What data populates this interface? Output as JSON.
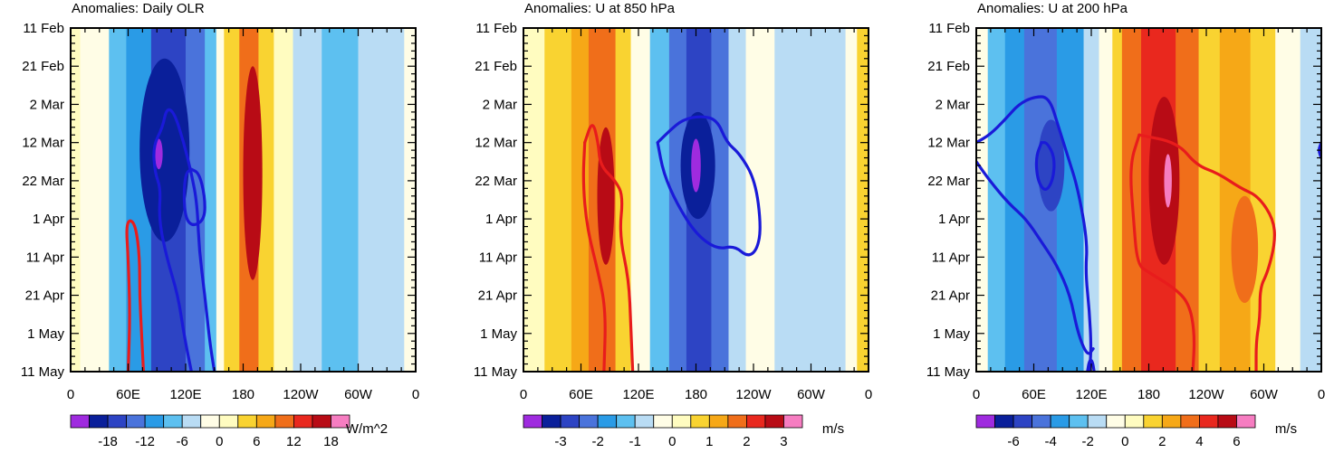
{
  "chart_data": [
    {
      "type": "heatmap",
      "title": "Anomalies: Daily OLR",
      "units": "W/m^2",
      "x_ticks": [
        "0",
        "60E",
        "120E",
        "180",
        "120W",
        "60W",
        "0"
      ],
      "x_values": [
        0,
        60,
        120,
        180,
        240,
        300,
        360
      ],
      "y_ticks": [
        "11 Feb",
        "21 Feb",
        "2 Mar",
        "12 Mar",
        "22 Mar",
        "1 Apr",
        "11 Apr",
        "21 Apr",
        "1 May",
        "11 May"
      ],
      "y_values": [
        0,
        10,
        20,
        30,
        40,
        50,
        60,
        70,
        80,
        90
      ],
      "colorbar_ticks": [
        "-18",
        "-12",
        "-6",
        "0",
        "6",
        "12",
        "18"
      ],
      "levels": [
        -21,
        -18,
        -15,
        -12,
        -9,
        -6,
        -3,
        0,
        3,
        6,
        9,
        12,
        15,
        18,
        21
      ],
      "bands": [
        {
          "from": 0,
          "to": 10,
          "value": 3
        },
        {
          "from": 10,
          "to": 22,
          "value": 1
        },
        {
          "from": 22,
          "to": 40,
          "value": 2
        },
        {
          "from": 40,
          "to": 58,
          "value": -4
        },
        {
          "from": 58,
          "to": 84,
          "value": -9
        },
        {
          "from": 84,
          "to": 120,
          "value": -14
        },
        {
          "from": 120,
          "to": 140,
          "value": -10
        },
        {
          "from": 140,
          "to": 152,
          "value": -4
        },
        {
          "from": 152,
          "to": 160,
          "value": 1
        },
        {
          "from": 160,
          "to": 176,
          "value": 7
        },
        {
          "from": 176,
          "to": 196,
          "value": 14
        },
        {
          "from": 196,
          "to": 212,
          "value": 8
        },
        {
          "from": 212,
          "to": 232,
          "value": 3
        },
        {
          "from": 232,
          "to": 262,
          "value": -1
        },
        {
          "from": 262,
          "to": 300,
          "value": -4
        },
        {
          "from": 300,
          "to": 332,
          "value": -3
        },
        {
          "from": 332,
          "to": 348,
          "value": -1
        },
        {
          "from": 348,
          "to": 360,
          "value": 2
        }
      ],
      "blobs": [
        {
          "x": 98,
          "y": 32,
          "rx": 26,
          "ry": 24,
          "value": -17
        },
        {
          "x": 92,
          "y": 33,
          "rx": 4,
          "ry": 4,
          "value": -20
        },
        {
          "x": 190,
          "y": 38,
          "rx": 10,
          "ry": 28,
          "value": 19
        }
      ],
      "contours": [
        {
          "color": "blue",
          "points": [
            [
              150,
              90
            ],
            [
              145,
              82
            ],
            [
              140,
              70
            ],
            [
              134,
              58
            ],
            [
              132,
              46
            ],
            [
              126,
              38
            ],
            [
              118,
              30
            ],
            [
              108,
              22
            ],
            [
              100,
              21
            ],
            [
              96,
              26
            ],
            [
              86,
              31
            ],
            [
              88,
              38
            ],
            [
              94,
              42
            ],
            [
              92,
              50
            ],
            [
              100,
              60
            ],
            [
              112,
              70
            ],
            [
              118,
              80
            ],
            [
              126,
              90
            ]
          ]
        },
        {
          "color": "blue",
          "points": [
            [
              126,
              37
            ],
            [
              134,
              38
            ],
            [
              140,
              44
            ],
            [
              140,
              50
            ],
            [
              128,
              52
            ],
            [
              120,
              50
            ],
            [
              118,
              44
            ],
            [
              120,
              38
            ],
            [
              126,
              37
            ]
          ]
        },
        {
          "color": "red",
          "points": [
            [
              60,
              90
            ],
            [
              62,
              75
            ],
            [
              60,
              60
            ],
            [
              58,
              52
            ],
            [
              62,
              50
            ],
            [
              68,
              52
            ],
            [
              72,
              60
            ],
            [
              72,
              70
            ],
            [
              74,
              80
            ],
            [
              76,
              90
            ]
          ]
        }
      ]
    },
    {
      "type": "heatmap",
      "title": "Anomalies: U at 850 hPa",
      "units": "m/s",
      "x_ticks": [
        "0",
        "60E",
        "120E",
        "180",
        "120W",
        "60W",
        "0"
      ],
      "x_values": [
        0,
        60,
        120,
        180,
        240,
        300,
        360
      ],
      "y_ticks": [
        "11 Feb",
        "21 Feb",
        "2 Mar",
        "12 Mar",
        "22 Mar",
        "1 Apr",
        "11 Apr",
        "21 Apr",
        "1 May",
        "11 May"
      ],
      "y_values": [
        0,
        10,
        20,
        30,
        40,
        50,
        60,
        70,
        80,
        90
      ],
      "colorbar_ticks": [
        "-3",
        "-2",
        "-1",
        "0",
        "1",
        "2",
        "3"
      ],
      "levels": [
        -3.5,
        -3,
        -2.5,
        -2,
        -1.5,
        -1,
        -0.5,
        0,
        0.5,
        1,
        1.5,
        2,
        2.5,
        3,
        3.5
      ],
      "bands": [
        {
          "from": 0,
          "to": 22,
          "value": 0.9
        },
        {
          "from": 22,
          "to": 50,
          "value": 1.3
        },
        {
          "from": 50,
          "to": 68,
          "value": 1.7
        },
        {
          "from": 68,
          "to": 96,
          "value": 2.3
        },
        {
          "from": 96,
          "to": 112,
          "value": 1.2
        },
        {
          "from": 112,
          "to": 132,
          "value": 0.3
        },
        {
          "from": 132,
          "to": 152,
          "value": -0.8
        },
        {
          "from": 152,
          "to": 170,
          "value": -1.7
        },
        {
          "from": 170,
          "to": 196,
          "value": -2.3
        },
        {
          "from": 196,
          "to": 214,
          "value": -1.6
        },
        {
          "from": 214,
          "to": 232,
          "value": -0.3
        },
        {
          "from": 232,
          "to": 262,
          "value": 0.3
        },
        {
          "from": 262,
          "to": 300,
          "value": -0.4
        },
        {
          "from": 300,
          "to": 336,
          "value": -0.3
        },
        {
          "from": 336,
          "to": 348,
          "value": 0.3
        },
        {
          "from": 348,
          "to": 360,
          "value": 1.2
        }
      ],
      "blobs": [
        {
          "x": 86,
          "y": 44,
          "rx": 9,
          "ry": 18,
          "value": 3.1
        },
        {
          "x": 182,
          "y": 36,
          "rx": 18,
          "ry": 14,
          "value": -2.8
        },
        {
          "x": 180,
          "y": 36,
          "rx": 5,
          "ry": 7,
          "value": -3.3
        }
      ],
      "contours": [
        {
          "color": "blue",
          "points": [
            [
              140,
              30
            ],
            [
              146,
              38
            ],
            [
              160,
              46
            ],
            [
              180,
              54
            ],
            [
              202,
              58
            ],
            [
              220,
              57
            ],
            [
              234,
              60
            ],
            [
              244,
              58
            ],
            [
              248,
              52
            ],
            [
              242,
              40
            ],
            [
              226,
              33
            ],
            [
              212,
              30
            ],
            [
              202,
              24
            ],
            [
              185,
              23
            ],
            [
              166,
              24
            ],
            [
              152,
              27
            ],
            [
              140,
              30
            ]
          ]
        },
        {
          "color": "red",
          "points": [
            [
              64,
              30
            ],
            [
              62,
              40
            ],
            [
              66,
              52
            ],
            [
              78,
              64
            ],
            [
              86,
              74
            ],
            [
              84,
              90
            ]
          ]
        },
        {
          "color": "red",
          "points": [
            [
              64,
              30
            ],
            [
              72,
              24
            ],
            [
              78,
              30
            ],
            [
              80,
              36
            ],
            [
              96,
              40
            ],
            [
              104,
              44
            ],
            [
              100,
              54
            ],
            [
              110,
              66
            ],
            [
              112,
              78
            ],
            [
              114,
              90
            ]
          ]
        }
      ]
    },
    {
      "type": "heatmap",
      "title": "Anomalies: U at 200 hPa",
      "units": "m/s",
      "x_ticks": [
        "0",
        "60E",
        "120E",
        "180",
        "120W",
        "60W",
        "0"
      ],
      "x_values": [
        0,
        60,
        120,
        180,
        240,
        300,
        360
      ],
      "y_ticks": [
        "11 Feb",
        "21 Feb",
        "2 Mar",
        "12 Mar",
        "22 Mar",
        "1 Apr",
        "11 Apr",
        "21 Apr",
        "1 May",
        "11 May"
      ],
      "y_values": [
        0,
        10,
        20,
        30,
        40,
        50,
        60,
        70,
        80,
        90
      ],
      "colorbar_ticks": [
        "-6",
        "-4",
        "-2",
        "0",
        "2",
        "4",
        "6"
      ],
      "levels": [
        -7,
        -6,
        -5,
        -4,
        -3,
        -2,
        -1,
        0,
        1,
        2,
        3,
        4,
        5,
        6,
        7
      ],
      "bands": [
        {
          "from": 0,
          "to": 12,
          "value": 0.3
        },
        {
          "from": 12,
          "to": 30,
          "value": -1.5
        },
        {
          "from": 30,
          "to": 50,
          "value": -2.5
        },
        {
          "from": 50,
          "to": 84,
          "value": -3.3
        },
        {
          "from": 84,
          "to": 112,
          "value": -2.3
        },
        {
          "from": 112,
          "to": 128,
          "value": -0.8
        },
        {
          "from": 128,
          "to": 142,
          "value": 0.4
        },
        {
          "from": 142,
          "to": 152,
          "value": 2.3
        },
        {
          "from": 152,
          "to": 172,
          "value": 4.5
        },
        {
          "from": 172,
          "to": 208,
          "value": 5.6
        },
        {
          "from": 208,
          "to": 232,
          "value": 4.3
        },
        {
          "from": 232,
          "to": 254,
          "value": 2.6
        },
        {
          "from": 254,
          "to": 286,
          "value": 3.5
        },
        {
          "from": 286,
          "to": 312,
          "value": 2.3
        },
        {
          "from": 312,
          "to": 338,
          "value": 0.5
        },
        {
          "from": 338,
          "to": 360,
          "value": -0.5
        }
      ],
      "blobs": [
        {
          "x": 196,
          "y": 40,
          "rx": 16,
          "ry": 22,
          "value": 6.3
        },
        {
          "x": 200,
          "y": 40,
          "rx": 4,
          "ry": 7,
          "value": 7.2
        },
        {
          "x": 280,
          "y": 58,
          "rx": 14,
          "ry": 14,
          "value": 4.8
        },
        {
          "x": 78,
          "y": 36,
          "rx": 14,
          "ry": 12,
          "value": -4.7
        }
      ],
      "contours": [
        {
          "color": "blue",
          "points": [
            [
              0,
              30
            ],
            [
              14,
              28
            ],
            [
              30,
              24
            ],
            [
              44,
              20
            ],
            [
              60,
              18
            ],
            [
              76,
              18
            ],
            [
              86,
              26
            ],
            [
              96,
              34
            ],
            [
              106,
              42
            ],
            [
              116,
              56
            ],
            [
              114,
              64
            ],
            [
              118,
              74
            ],
            [
              120,
              84
            ],
            [
              118,
              90
            ]
          ]
        },
        {
          "color": "blue",
          "points": [
            [
              0,
              35
            ],
            [
              14,
              40
            ],
            [
              34,
              46
            ],
            [
              52,
              50
            ],
            [
              68,
              56
            ],
            [
              84,
              62
            ],
            [
              98,
              70
            ],
            [
              106,
              80
            ],
            [
              116,
              86
            ],
            [
              122,
              84
            ]
          ]
        },
        {
          "color": "blue",
          "points": [
            [
              68,
              30
            ],
            [
              62,
              34
            ],
            [
              64,
              40
            ],
            [
              72,
              43
            ],
            [
              80,
              40
            ],
            [
              82,
              34
            ],
            [
              74,
              30
            ],
            [
              68,
              30
            ]
          ]
        },
        {
          "color": "blue",
          "points": [
            [
              116,
              90
            ],
            [
              118,
              87
            ],
            [
              121,
              87
            ],
            [
              123,
              90
            ]
          ]
        },
        {
          "color": "blue",
          "points": [
            [
              360,
              30
            ],
            [
              357,
              32
            ],
            [
              360,
              34
            ]
          ]
        },
        {
          "color": "red",
          "points": [
            [
              170,
              28
            ],
            [
              210,
              30
            ],
            [
              230,
              36
            ],
            [
              252,
              38
            ],
            [
              276,
              42
            ],
            [
              294,
              44
            ],
            [
              310,
              50
            ],
            [
              312,
              56
            ],
            [
              304,
              64
            ],
            [
              296,
              68
            ],
            [
              296,
              76
            ],
            [
              292,
              82
            ],
            [
              292,
              90
            ]
          ]
        },
        {
          "color": "red",
          "points": [
            [
              170,
              28
            ],
            [
              160,
              36
            ],
            [
              164,
              50
            ],
            [
              168,
              62
            ],
            [
              180,
              64
            ],
            [
              206,
              68
            ],
            [
              222,
              72
            ],
            [
              228,
              80
            ],
            [
              226,
              90
            ]
          ]
        }
      ]
    }
  ]
}
